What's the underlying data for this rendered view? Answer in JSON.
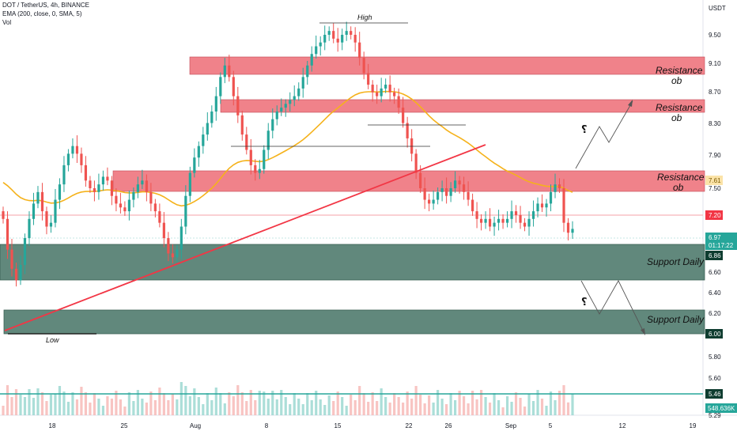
{
  "header": {
    "line1": "DOT / TetherUS, 4h, BINANCE",
    "line2": "EMA (200, close, 0, SMA, 5)",
    "line3": "Vol"
  },
  "colors": {
    "resistance_zone": "#f0828a",
    "support_zone": "#3f6f60",
    "trendline": "#f23645",
    "ema": "#f5b21b",
    "up_candle": "#26a69a",
    "down_candle": "#ef5350",
    "volume_line": "#26a69a",
    "price_badge": "#26a69a",
    "red_badge": "#f23645",
    "ema_badge": "#fbe3a8"
  },
  "chart_data": {
    "type": "candlestick",
    "symbol": "DOT / TetherUS",
    "timeframe": "4h",
    "exchange": "BINANCE",
    "y_axis_unit": "USDT",
    "y_ticks": [
      "9.50",
      "9.10",
      "8.70",
      "8.30",
      "7.90",
      "7.50",
      "6.60",
      "6.40",
      "6.20",
      "5.80",
      "5.60",
      "5.29"
    ],
    "x_ticks": [
      "18",
      "25",
      "Aug",
      "8",
      "15",
      "22",
      "26",
      "Sep",
      "5",
      "12",
      "19"
    ],
    "ema_period": 200,
    "price_labels": {
      "ema": "7.61",
      "red_line": "7.20",
      "last_price": "6.97",
      "countdown": "01:17:22",
      "support_top": "6.86",
      "support_bottom": "6.00",
      "volume_level": "5.46",
      "volume": "548.636K"
    },
    "annotations": {
      "high": "High",
      "low": "Low",
      "resistance_word": "Resistance",
      "ob_word": "ob",
      "support_label": "Support Daily",
      "question_mark": "؟"
    },
    "zones": [
      {
        "kind": "resistance",
        "from": "Aug",
        "to": "",
        "low": 8.95,
        "high": 9.15
      },
      {
        "kind": "resistance",
        "from": "",
        "to": "",
        "low": 8.45,
        "high": 8.6
      },
      {
        "kind": "resistance",
        "from": "",
        "to": "",
        "low": 7.45,
        "high": 7.75
      },
      {
        "kind": "support",
        "from": "",
        "to": "",
        "low": 6.55,
        "high": 6.95
      },
      {
        "kind": "support",
        "from": "",
        "to": "",
        "low": 6.0,
        "high": 6.2
      }
    ],
    "close_prices": [
      7.1,
      6.7,
      6.45,
      6.3,
      6.5,
      6.85,
      7.1,
      7.3,
      7.45,
      7.2,
      7.0,
      7.05,
      7.35,
      7.55,
      7.8,
      7.95,
      8.05,
      7.95,
      7.8,
      7.6,
      7.5,
      7.45,
      7.55,
      7.65,
      7.6,
      7.4,
      7.3,
      7.25,
      7.2,
      7.35,
      7.45,
      7.55,
      7.6,
      7.45,
      7.3,
      7.2,
      7.05,
      6.85,
      6.65,
      6.6,
      6.7,
      7.0,
      7.4,
      7.7,
      7.9,
      8.05,
      8.2,
      8.35,
      8.5,
      8.7,
      8.95,
      9.1,
      8.95,
      8.7,
      8.45,
      8.2,
      8.0,
      7.8,
      7.7,
      7.75,
      8.0,
      8.25,
      8.4,
      8.5,
      8.55,
      8.6,
      8.65,
      8.7,
      8.8,
      8.95,
      9.1,
      9.25,
      9.35,
      9.4,
      9.5,
      9.55,
      9.45,
      9.4,
      9.5,
      9.55,
      9.5,
      9.4,
      9.2,
      9.0,
      8.85,
      8.75,
      8.7,
      8.8,
      8.85,
      8.75,
      8.7,
      8.55,
      8.35,
      8.15,
      7.95,
      7.7,
      7.5,
      7.35,
      7.3,
      7.35,
      7.45,
      7.5,
      7.4,
      7.5,
      7.6,
      7.55,
      7.45,
      7.35,
      7.2,
      7.1,
      7.05,
      7.1,
      7.0,
      7.05,
      7.1,
      7.05,
      7.1,
      7.2,
      7.15,
      7.05,
      7.0,
      7.1,
      7.2,
      7.3,
      7.25,
      7.3,
      7.45,
      7.55,
      7.5,
      7.05,
      6.92,
      6.97
    ]
  }
}
